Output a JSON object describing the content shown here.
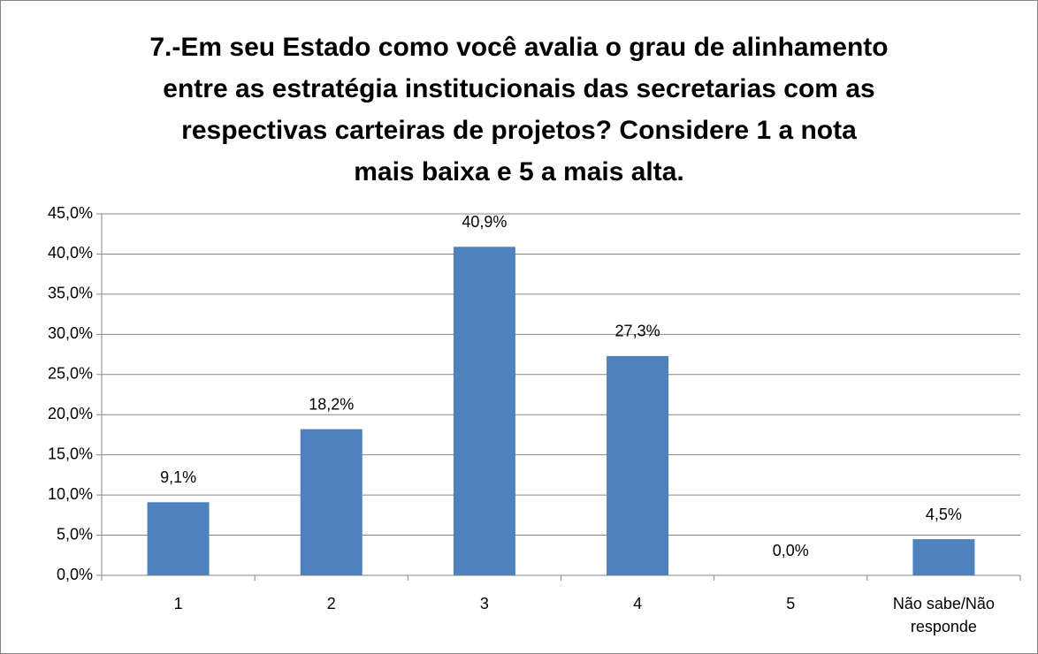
{
  "chart_data": {
    "type": "bar",
    "title": "7.-Em seu Estado como você avalia o grau de alinhamento entre as estratégia institucionais das secretarias com as respectivas carteiras de projetos? Considere 1 a nota mais baixa e 5 a mais alta.",
    "categories": [
      "1",
      "2",
      "3",
      "4",
      "5",
      "Não sabe/Não responde"
    ],
    "values": [
      9.1,
      18.2,
      40.9,
      27.3,
      0,
      4.5
    ],
    "value_labels": [
      "9,1%",
      "18,2%",
      "40,9%",
      "27,3%",
      "0,0%",
      "4,5%"
    ],
    "color": "#4f81bd",
    "ylim": [
      0,
      45
    ],
    "yticks": [
      {
        "value": 0,
        "label": "0,0%"
      },
      {
        "value": 5,
        "label": "5,0%"
      },
      {
        "value": 10,
        "label": "10,0%"
      },
      {
        "value": 15,
        "label": "15,0%"
      },
      {
        "value": 20,
        "label": "20,0%"
      },
      {
        "value": 25,
        "label": "25,0%"
      },
      {
        "value": 30,
        "label": "30,0%"
      },
      {
        "value": 35,
        "label": "35,0%"
      },
      {
        "value": 40,
        "label": "40,0%"
      },
      {
        "value": 45,
        "label": "45,0%"
      }
    ],
    "grid": true
  }
}
